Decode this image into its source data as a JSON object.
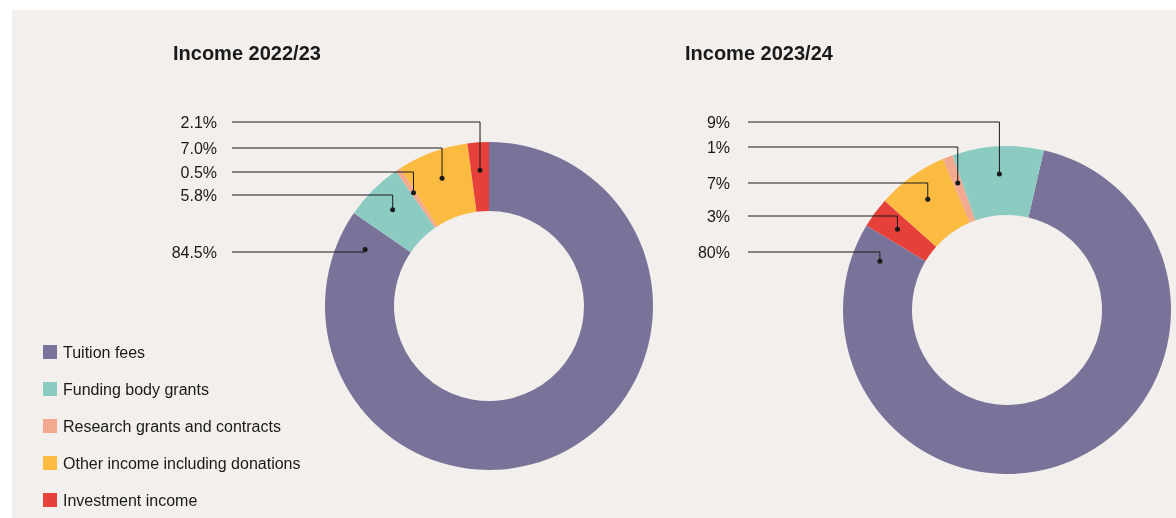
{
  "chart_data": [
    {
      "type": "donut",
      "title": "Income 2022/23",
      "categories": [
        "Tuition fees",
        "Funding body grants",
        "Research grants and contracts",
        "Other income including donations",
        "Investment income"
      ],
      "values": [
        84.5,
        5.8,
        0.5,
        7.0,
        2.1
      ],
      "value_labels": [
        "84.5%",
        "5.8%",
        "0.5%",
        "7.0%",
        "2.1%"
      ],
      "colors": [
        "#7a7399",
        "#8ccbc2",
        "#f2a98f",
        "#fbbb40",
        "#e5403a"
      ],
      "legend": "bottom left"
    },
    {
      "type": "donut",
      "title": "Income 2023/24",
      "categories": [
        null,
        null,
        null,
        null,
        null
      ],
      "values": [
        80,
        3,
        7,
        1,
        9
      ],
      "value_labels": [
        "80%",
        "3%",
        "7%",
        "1%",
        "9%"
      ],
      "colors": [
        "#7a7399",
        "#e5403a",
        "#fbbb40",
        "#f2a98f",
        "#8ccbc2"
      ]
    }
  ]
}
